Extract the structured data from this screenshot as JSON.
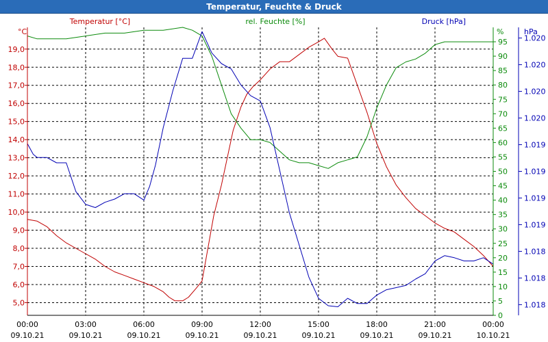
{
  "window": {
    "title": "Temperatur, Feuchte & Druck"
  },
  "colors": {
    "temperature": "#c00000",
    "humidity": "#0a8a0a",
    "pressure": "#0000b4",
    "grid": "#000000",
    "title_bar": "#2a6cb8"
  },
  "chart_data": {
    "type": "line",
    "title": "Temperatur, Feuchte & Druck",
    "x_tick_labels": [
      {
        "time": "00:00",
        "date": "09.10.21"
      },
      {
        "time": "03:00",
        "date": "09.10.21"
      },
      {
        "time": "06:00",
        "date": "09.10.21"
      },
      {
        "time": "09:00",
        "date": "09.10.21"
      },
      {
        "time": "12:00",
        "date": "09.10.21"
      },
      {
        "time": "15:00",
        "date": "09.10.21"
      },
      {
        "time": "18:00",
        "date": "09.10.21"
      },
      {
        "time": "21:00",
        "date": "09.10.21"
      },
      {
        "time": "00:00",
        "date": "10.10.21"
      }
    ],
    "x_range_hours": [
      0,
      24
    ],
    "axes": {
      "temperature": {
        "label": "Temperatur [°C]",
        "unit": "°C",
        "range": [
          4.3,
          20.2
        ],
        "ticks": [
          "5,0",
          "6,0",
          "7,0",
          "8,0",
          "9,0",
          "10,0",
          "11,0",
          "12,0",
          "13,0",
          "14,0",
          "15,0",
          "16,0",
          "17,0",
          "18,0",
          "19,0"
        ]
      },
      "humidity": {
        "label": "rel. Feuchte [%]",
        "unit": "%",
        "range": [
          0,
          100
        ],
        "ticks": [
          "0",
          "5",
          "10",
          "15",
          "20",
          "25",
          "30",
          "35",
          "40",
          "45",
          "50",
          "55",
          "60",
          "65",
          "70",
          "75",
          "80",
          "85",
          "90",
          "95"
        ]
      },
      "pressure": {
        "label": "Druck [hPa]",
        "unit": "hPa",
        "range": [
          1017.64,
          1020.34
        ],
        "ticks": [
          "1.018",
          "1.018",
          "1.018",
          "1.019",
          "1.019",
          "1.019",
          "1.019",
          "1.020",
          "1.020",
          "1.020",
          "1.020"
        ]
      }
    },
    "series": [
      {
        "name": "Temperatur",
        "axis": "temperature",
        "x": [
          0,
          0.5,
          1,
          1.5,
          2,
          2.5,
          3,
          3.5,
          4,
          4.5,
          5,
          5.5,
          6,
          6.5,
          7,
          7.3,
          7.6,
          8,
          8.3,
          8.7,
          9,
          9.3,
          9.6,
          10,
          10.3,
          10.6,
          11,
          11.3,
          11.6,
          12,
          12.5,
          13,
          13.5,
          14,
          14.5,
          15,
          15.3,
          15.7,
          16,
          16.5,
          17,
          17.5,
          18,
          18.5,
          19,
          19.5,
          20,
          20.5,
          21,
          21.5,
          22,
          22.5,
          23,
          23.5,
          24
        ],
        "values": [
          9.6,
          9.5,
          9.2,
          8.7,
          8.3,
          8.0,
          7.7,
          7.4,
          7.0,
          6.7,
          6.5,
          6.3,
          6.1,
          5.9,
          5.6,
          5.3,
          5.1,
          5.1,
          5.3,
          5.8,
          6.2,
          8.0,
          9.8,
          11.5,
          13.0,
          14.5,
          15.8,
          16.5,
          16.9,
          17.3,
          17.9,
          18.3,
          18.3,
          18.7,
          19.1,
          19.4,
          19.6,
          19.0,
          18.6,
          18.5,
          17.0,
          15.5,
          13.8,
          12.5,
          11.5,
          10.8,
          10.2,
          9.8,
          9.4,
          9.1,
          8.9,
          8.5,
          8.1,
          7.6,
          7.0
        ]
      },
      {
        "name": "rel. Feuchte",
        "axis": "humidity",
        "x": [
          0,
          0.5,
          1,
          1.5,
          2,
          3,
          4,
          5,
          6,
          7,
          8,
          8.5,
          9,
          9.5,
          10,
          10.5,
          11,
          11.5,
          12,
          12.5,
          13,
          13.5,
          14,
          14.5,
          15,
          15.5,
          16,
          16.5,
          17,
          17.5,
          18,
          18.5,
          19,
          19.5,
          20,
          20.5,
          21,
          21.5,
          22,
          22.5,
          23,
          23.5,
          24
        ],
        "values": [
          97,
          96,
          96,
          96,
          96,
          97,
          98,
          98,
          99,
          99,
          100,
          99,
          97,
          90,
          80,
          70,
          65,
          61,
          61,
          60,
          57,
          54,
          53,
          53,
          52,
          51,
          53,
          54,
          55,
          62,
          72,
          80,
          86,
          88,
          89,
          91,
          94,
          95,
          95,
          95,
          95,
          95,
          95
        ]
      },
      {
        "name": "Druck",
        "axis": "pressure",
        "x": [
          0,
          0.3,
          0.5,
          1,
          1.5,
          2,
          2.5,
          3,
          3.5,
          4,
          4.5,
          5,
          5.5,
          6,
          6.3,
          6.6,
          7,
          7.5,
          8,
          8.5,
          9,
          9.5,
          10,
          10.5,
          11,
          11.5,
          12,
          12.5,
          13,
          13.5,
          14,
          14.5,
          15,
          15.5,
          16,
          16.5,
          17,
          17.5,
          18,
          18.5,
          19,
          19.5,
          20,
          20.5,
          21,
          21.5,
          22,
          22.5,
          23,
          23.5,
          24
        ],
        "values": [
          1019.25,
          1019.15,
          1019.12,
          1019.12,
          1019.07,
          1019.07,
          1018.8,
          1018.68,
          1018.65,
          1018.7,
          1018.73,
          1018.78,
          1018.78,
          1018.72,
          1018.85,
          1019.05,
          1019.4,
          1019.75,
          1020.05,
          1020.05,
          1020.3,
          1020.1,
          1020.0,
          1019.95,
          1019.8,
          1019.7,
          1019.65,
          1019.4,
          1019.0,
          1018.6,
          1018.3,
          1018.0,
          1017.8,
          1017.73,
          1017.72,
          1017.8,
          1017.75,
          1017.75,
          1017.83,
          1017.88,
          1017.9,
          1017.92,
          1017.98,
          1018.03,
          1018.15,
          1018.2,
          1018.18,
          1018.15,
          1018.15,
          1018.18,
          1018.12
        ]
      }
    ]
  }
}
